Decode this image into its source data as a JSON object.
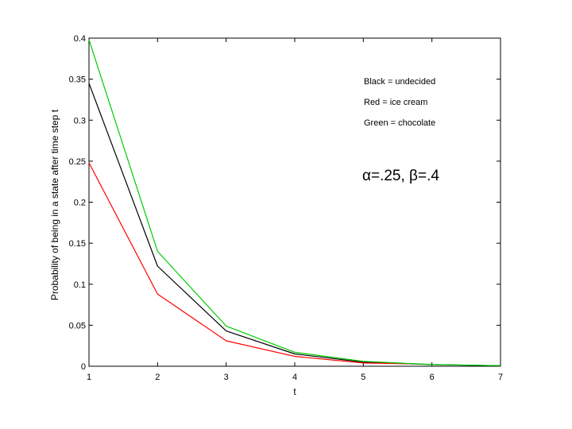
{
  "chart_data": {
    "type": "line",
    "title": "",
    "xlabel": "t",
    "ylabel": "Probability of being in a state after time step t",
    "xlim": [
      1,
      7
    ],
    "ylim": [
      0,
      0.4
    ],
    "xticks": [
      1,
      2,
      3,
      4,
      5,
      6,
      7
    ],
    "xtick_labels": [
      "1",
      "2",
      "3",
      "4",
      "5",
      "6",
      "7"
    ],
    "yticks": [
      0,
      0.05,
      0.1,
      0.15,
      0.2,
      0.25,
      0.3,
      0.35,
      0.4
    ],
    "ytick_labels": [
      "0",
      "0.05",
      "0.1",
      "0.15",
      "0.2",
      "0.25",
      "0.3",
      "0.35",
      "0.4"
    ],
    "grid": false,
    "legend_placement": "top-right",
    "legend_text": [
      "Black = undecided",
      "Red = ice cream",
      "Green = chocolate"
    ],
    "annotation": "α=.25, β=.4",
    "series": [
      {
        "key": "undecided",
        "color": "#000000",
        "x": [
          1,
          2,
          3,
          4,
          5,
          6,
          7
        ],
        "values": [
          0.345,
          0.122,
          0.043,
          0.015,
          0.005,
          0.002,
          0.0006
        ]
      },
      {
        "key": "ice cream",
        "color": "#ff0000",
        "x": [
          1,
          2,
          3,
          4,
          5,
          5.7
        ],
        "values": [
          0.248,
          0.088,
          0.031,
          0.012,
          0.004,
          0.003
        ]
      },
      {
        "key": "chocolate",
        "color": "#00cc00",
        "x": [
          1,
          2,
          3,
          4,
          5,
          6,
          7
        ],
        "values": [
          0.398,
          0.14,
          0.049,
          0.017,
          0.006,
          0.002,
          0.0007
        ]
      }
    ]
  }
}
